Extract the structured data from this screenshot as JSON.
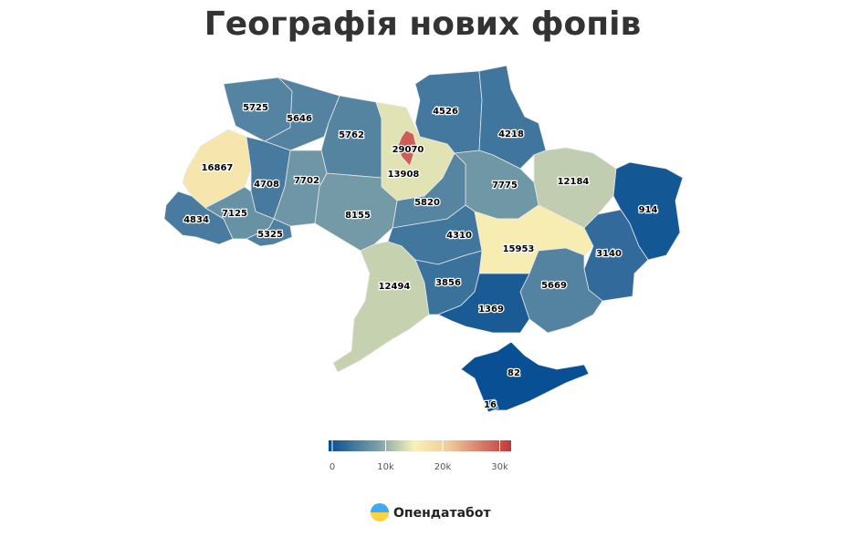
{
  "chart_data": {
    "type": "choropleth",
    "title": "Географія нових фопів",
    "source": "Опендатабот",
    "values": [
      5725,
      5646,
      5762,
      4526,
      4218,
      16867,
      4708,
      7702,
      29070,
      13908,
      12184,
      7775,
      5820,
      914,
      4834,
      7125,
      5325,
      8155,
      4310,
      15953,
      3140,
      12494,
      3856,
      5669,
      1369,
      82,
      16
    ],
    "clim": [
      0,
      32000
    ],
    "cticks": [
      0,
      {
        "value": 10000,
        "label": "10k"
      },
      {
        "value": 20000,
        "label": "20k"
      },
      {
        "value": 30000,
        "label": "30k"
      }
    ],
    "colorscale": [
      [
        0,
        "#084e93"
      ],
      [
        0.27,
        "#7b9fa8"
      ],
      [
        0.47,
        "#f8f2b6"
      ],
      [
        0.66,
        "#f0c99b"
      ],
      [
        1,
        "#c0373b"
      ]
    ]
  }
}
